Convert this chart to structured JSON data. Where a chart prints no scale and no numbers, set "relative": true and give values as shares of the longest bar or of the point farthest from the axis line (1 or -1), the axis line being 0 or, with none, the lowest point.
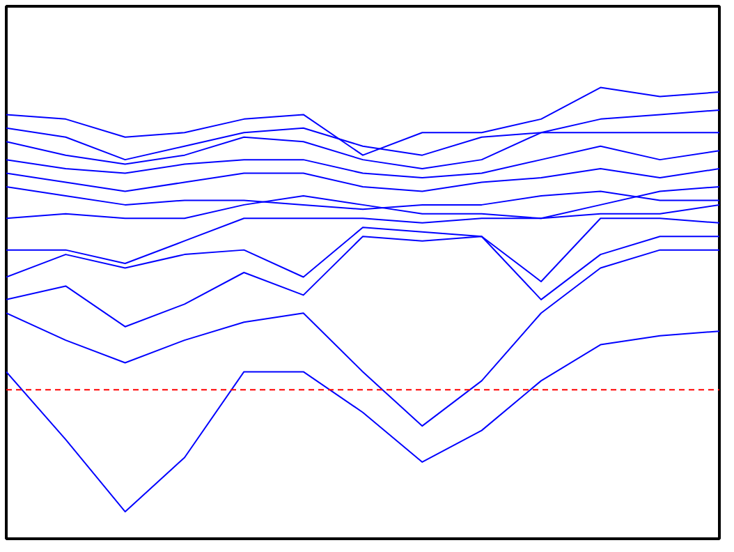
{
  "chart_data": {
    "type": "line",
    "relative": true,
    "tick_labels": false,
    "grid": false,
    "marker": "none",
    "line_style": "solid",
    "categories": [
      null,
      null,
      null,
      null,
      null,
      null,
      null,
      null,
      null,
      null,
      null,
      null,
      null
    ],
    "series": [
      {
        "color": "#0000ff",
        "values": [
          0.37,
          0.22,
          0.06,
          0.18,
          0.37,
          0.37,
          0.28,
          0.17,
          0.24,
          0.35,
          0.43,
          0.45,
          0.46
        ]
      },
      {
        "color": "#0000ff",
        "values": [
          0.5,
          0.44,
          0.39,
          0.44,
          0.48,
          0.5,
          0.37,
          0.25,
          0.35,
          0.5,
          0.6,
          0.64,
          0.64
        ]
      },
      {
        "color": "#0000ff",
        "values": [
          0.53,
          0.56,
          0.47,
          0.52,
          0.59,
          0.54,
          0.67,
          0.66,
          0.67,
          0.53,
          0.63,
          0.67,
          0.67
        ]
      },
      {
        "color": "#0000ff",
        "values": [
          0.58,
          0.63,
          0.6,
          0.63,
          0.64,
          0.58,
          0.69,
          0.68,
          0.67,
          0.57,
          0.71,
          0.71,
          0.7
        ]
      },
      {
        "color": "#0000ff",
        "values": [
          0.64,
          0.64,
          0.61,
          0.66,
          0.71,
          0.71,
          0.71,
          0.7,
          0.71,
          0.71,
          0.72,
          0.72,
          0.74
        ]
      },
      {
        "color": "#0000ff",
        "values": [
          0.71,
          0.72,
          0.71,
          0.71,
          0.74,
          0.76,
          0.74,
          0.72,
          0.72,
          0.71,
          0.74,
          0.77,
          0.78
        ]
      },
      {
        "color": "#0000ff",
        "values": [
          0.78,
          0.76,
          0.74,
          0.75,
          0.75,
          0.74,
          0.73,
          0.74,
          0.74,
          0.76,
          0.77,
          0.75,
          0.75
        ]
      },
      {
        "color": "#0000ff",
        "values": [
          0.81,
          0.79,
          0.77,
          0.79,
          0.81,
          0.81,
          0.78,
          0.77,
          0.79,
          0.8,
          0.82,
          0.8,
          0.82
        ]
      },
      {
        "color": "#0000ff",
        "values": [
          0.84,
          0.82,
          0.81,
          0.83,
          0.84,
          0.84,
          0.81,
          0.8,
          0.81,
          0.84,
          0.87,
          0.84,
          0.86
        ]
      },
      {
        "color": "#0000ff",
        "values": [
          0.88,
          0.85,
          0.83,
          0.85,
          0.89,
          0.88,
          0.84,
          0.82,
          0.84,
          0.9,
          0.9,
          0.9,
          0.9
        ]
      },
      {
        "color": "#0000ff",
        "values": [
          0.91,
          0.89,
          0.84,
          0.87,
          0.9,
          0.91,
          0.87,
          0.85,
          0.89,
          0.9,
          0.93,
          0.94,
          0.95
        ]
      },
      {
        "color": "#0000ff",
        "values": [
          0.94,
          0.93,
          0.89,
          0.9,
          0.93,
          0.94,
          0.85,
          0.9,
          0.9,
          0.93,
          1.0,
          0.98,
          0.99
        ]
      }
    ],
    "ref_lines": [
      {
        "axis": "y",
        "value": 0.33,
        "color": "#ff0000",
        "line_style": "dashed"
      }
    ]
  }
}
